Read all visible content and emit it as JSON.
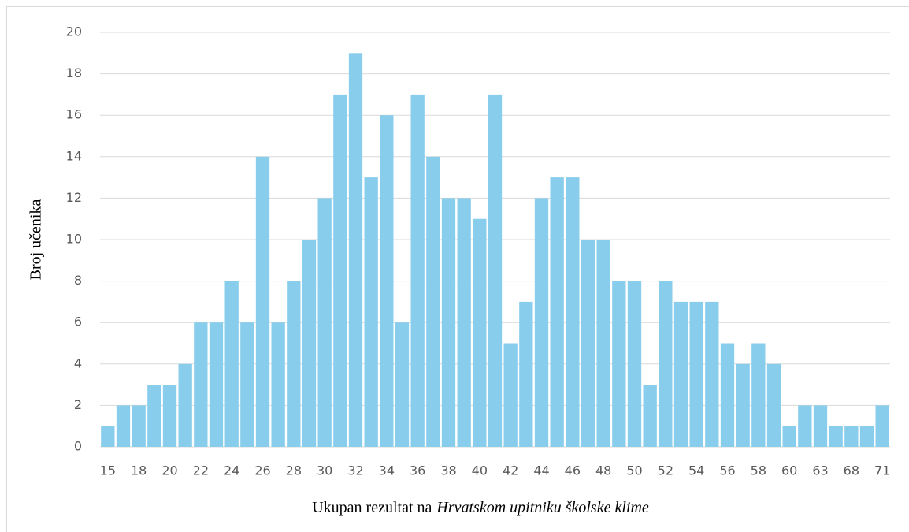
{
  "chart_data": {
    "type": "bar",
    "ylabel": "Broj učenika",
    "xlabel_parts": [
      "Ukupan rezultat na",
      "Hrvatskom upitniku školske klime"
    ],
    "categories": [
      "15",
      null,
      "18",
      null,
      "20",
      null,
      "22",
      null,
      "24",
      null,
      "26",
      null,
      "28",
      null,
      "30",
      null,
      "32",
      null,
      "34",
      null,
      "36",
      null,
      "38",
      null,
      "40",
      null,
      "42",
      null,
      "44",
      null,
      "46",
      null,
      "48",
      null,
      "50",
      null,
      "52",
      null,
      "54",
      null,
      "56",
      null,
      "58",
      null,
      "60",
      null,
      "63",
      null,
      "68",
      null,
      "71"
    ],
    "values": [
      1,
      2,
      2,
      3,
      3,
      4,
      6,
      6,
      8,
      6,
      14,
      6,
      8,
      10,
      12,
      17,
      19,
      13,
      16,
      6,
      17,
      14,
      12,
      12,
      11,
      17,
      5,
      7,
      12,
      13,
      13,
      10,
      10,
      8,
      8,
      3,
      8,
      7,
      7,
      7,
      5,
      4,
      5,
      4,
      1,
      2,
      2,
      1,
      1,
      1,
      2
    ],
    "color": "#88cdeb",
    "ylim": [
      0,
      20
    ],
    "yticks": [
      0,
      2,
      4,
      6,
      8,
      10,
      12,
      14,
      16,
      18,
      20
    ],
    "grid": true
  }
}
